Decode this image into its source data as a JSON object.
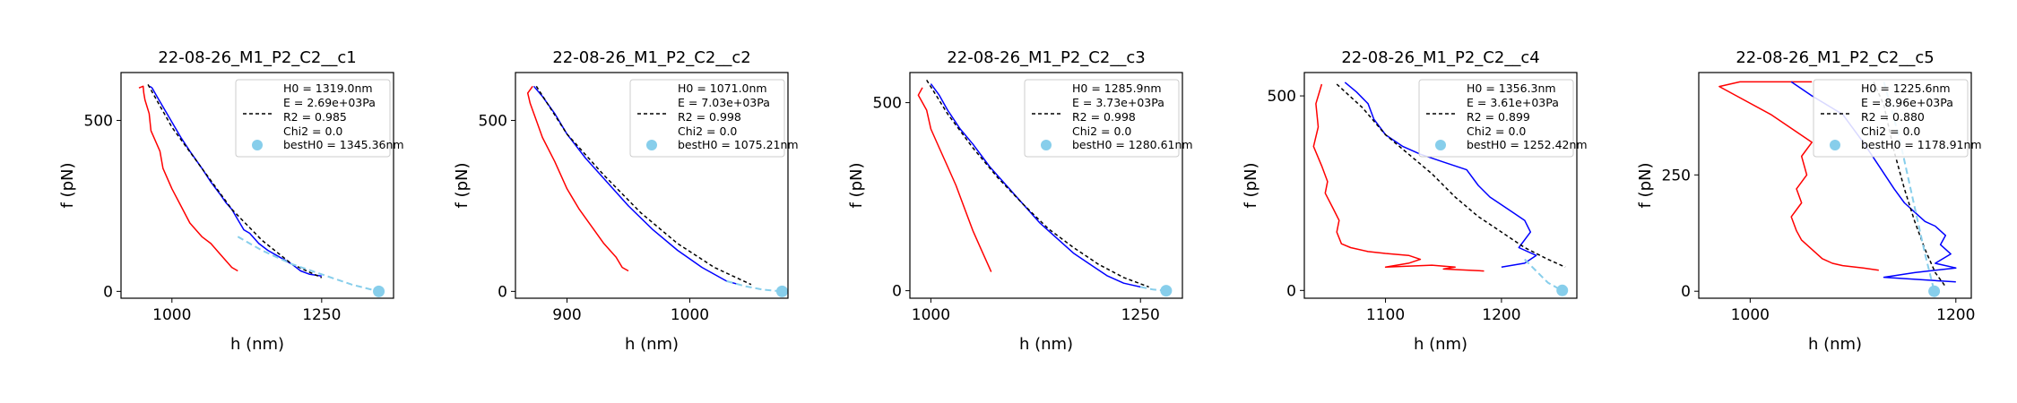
{
  "figure": {
    "background": "#ffffff"
  },
  "chart_data": [
    {
      "type": "line",
      "title": "22-08-26_M1_P2_C2__c1",
      "xlabel": "h (nm)",
      "ylabel": "f (pN)",
      "xlim": [
        915,
        1370
      ],
      "ylim": [
        -20,
        640
      ],
      "xticks": [
        1000,
        1250
      ],
      "yticks": [
        0,
        500
      ],
      "legend": {
        "position": "top-right",
        "entries": [
          "H0 = 1319.0nm",
          "E = 2.69e+03Pa",
          "R2 = 0.985",
          "Chi2 = 0.0",
          "bestH0 = 1345.36nm"
        ]
      },
      "series": [
        {
          "role": "approach",
          "color": "#ff0000",
          "x": [
            945,
            952,
            953,
            955,
            962,
            965,
            980,
            985,
            1000,
            1015,
            1030,
            1050,
            1065,
            1080,
            1090,
            1100,
            1110
          ],
          "y": [
            595,
            600,
            580,
            560,
            520,
            470,
            410,
            360,
            300,
            250,
            200,
            160,
            140,
            110,
            90,
            70,
            60
          ]
        },
        {
          "role": "retract",
          "color": "#0000ff",
          "x": [
            963,
            967,
            975,
            985,
            1000,
            1015,
            1030,
            1050,
            1065,
            1080,
            1090,
            1100,
            1110,
            1120,
            1130,
            1145,
            1160,
            1180,
            1200,
            1215,
            1230,
            1250
          ],
          "y": [
            600,
            595,
            570,
            540,
            495,
            450,
            410,
            360,
            320,
            285,
            260,
            240,
            210,
            180,
            170,
            140,
            120,
            100,
            80,
            60,
            50,
            45
          ]
        },
        {
          "role": "fit",
          "color": "#000000",
          "dashed": true,
          "x": [
            960,
            1000,
            1050,
            1100,
            1150,
            1200,
            1250
          ],
          "y": [
            605,
            480,
            360,
            240,
            150,
            80,
            40
          ]
        },
        {
          "role": "extrapolation",
          "color": "#87ceeb",
          "dashed": true,
          "x": [
            1110,
            1150,
            1200,
            1250,
            1300,
            1345
          ],
          "y": [
            160,
            120,
            80,
            50,
            20,
            0
          ]
        }
      ],
      "bestH0_point": {
        "x": 1345.36,
        "y": 0,
        "color": "#87ceeb"
      }
    },
    {
      "type": "line",
      "title": "22-08-26_M1_P2_C2__c2",
      "xlabel": "h (nm)",
      "ylabel": "f (pN)",
      "xlim": [
        858,
        1080
      ],
      "ylim": [
        -20,
        640
      ],
      "xticks": [
        900,
        1000
      ],
      "yticks": [
        0,
        500
      ],
      "legend": {
        "position": "top-right",
        "entries": [
          "H0 = 1071.0nm",
          "E = 7.03e+03Pa",
          "R2 = 0.998",
          "Chi2 = 0.0",
          "bestH0 = 1075.21nm"
        ]
      },
      "series": [
        {
          "role": "approach",
          "color": "#ff0000",
          "x": [
            872,
            868,
            870,
            875,
            880,
            890,
            900,
            910,
            920,
            930,
            940,
            945,
            950
          ],
          "y": [
            600,
            580,
            550,
            500,
            450,
            380,
            300,
            240,
            190,
            140,
            100,
            70,
            60
          ]
        },
        {
          "role": "retract",
          "color": "#0000ff",
          "x": [
            873,
            880,
            890,
            900,
            915,
            930,
            950,
            970,
            990,
            1010,
            1030,
            1040
          ],
          "y": [
            600,
            570,
            520,
            460,
            390,
            330,
            250,
            180,
            120,
            70,
            30,
            20
          ]
        },
        {
          "role": "fit",
          "color": "#000000",
          "dashed": true,
          "x": [
            875,
            900,
            930,
            960,
            990,
            1020,
            1050
          ],
          "y": [
            600,
            460,
            340,
            230,
            140,
            70,
            20
          ]
        },
        {
          "role": "extrapolation",
          "color": "#87ceeb",
          "dashed": true,
          "x": [
            1030,
            1045,
            1060,
            1075
          ],
          "y": [
            30,
            15,
            5,
            0
          ]
        }
      ],
      "bestH0_point": {
        "x": 1075.21,
        "y": 0,
        "color": "#87ceeb"
      }
    },
    {
      "type": "line",
      "title": "22-08-26_M1_P2_C2__c3",
      "xlabel": "h (nm)",
      "ylabel": "f (pN)",
      "xlim": [
        975,
        1300
      ],
      "ylim": [
        -20,
        580
      ],
      "xticks": [
        1000,
        1250
      ],
      "yticks": [
        0,
        500
      ],
      "legend": {
        "position": "top-right",
        "entries": [
          "H0 = 1285.9nm",
          "E = 3.73e+03Pa",
          "R2 = 0.998",
          "Chi2 = 0.0",
          "bestH0 = 1280.61nm"
        ]
      },
      "series": [
        {
          "role": "approach",
          "color": "#ff0000",
          "x": [
            990,
            985,
            995,
            1000,
            1010,
            1020,
            1030,
            1040,
            1050,
            1060,
            1070,
            1072
          ],
          "y": [
            540,
            520,
            480,
            430,
            380,
            330,
            280,
            220,
            160,
            110,
            60,
            50
          ]
        },
        {
          "role": "retract",
          "color": "#0000ff",
          "x": [
            1000,
            1010,
            1020,
            1035,
            1050,
            1070,
            1090,
            1110,
            1130,
            1150,
            1170,
            1190,
            1210,
            1230,
            1250
          ],
          "y": [
            550,
            520,
            480,
            430,
            390,
            330,
            280,
            230,
            180,
            140,
            100,
            70,
            40,
            20,
            10
          ]
        },
        {
          "role": "fit",
          "color": "#000000",
          "dashed": true,
          "x": [
            995,
            1020,
            1050,
            1080,
            1110,
            1140,
            1170,
            1200,
            1230,
            1260
          ],
          "y": [
            560,
            470,
            380,
            300,
            230,
            165,
            115,
            70,
            35,
            10
          ]
        },
        {
          "role": "extrapolation",
          "color": "#87ceeb",
          "dashed": true,
          "x": [
            1250,
            1265,
            1280
          ],
          "y": [
            10,
            3,
            0
          ]
        }
      ],
      "bestH0_point": {
        "x": 1280.61,
        "y": 0,
        "color": "#87ceeb"
      }
    },
    {
      "type": "line",
      "title": "22-08-26_M1_P2_C2__c4",
      "xlabel": "h (nm)",
      "ylabel": "f (pN)",
      "xlim": [
        1030,
        1265
      ],
      "ylim": [
        -20,
        560
      ],
      "xticks": [
        1100,
        1200
      ],
      "yticks": [
        0,
        500
      ],
      "legend": {
        "position": "top-right",
        "entries": [
          "H0 = 1356.3nm",
          "E = 3.61e+03Pa",
          "R2 = 0.899",
          "Chi2 = 0.0",
          "bestH0 = 1252.42nm"
        ]
      },
      "series": [
        {
          "role": "approach",
          "color": "#ff0000",
          "x": [
            1045,
            1040,
            1042,
            1038,
            1045,
            1050,
            1048,
            1055,
            1060,
            1058,
            1062,
            1070,
            1085,
            1100,
            1120,
            1130,
            1120,
            1100,
            1140,
            1160,
            1150,
            1185
          ],
          "y": [
            530,
            480,
            420,
            370,
            320,
            280,
            250,
            210,
            180,
            150,
            120,
            110,
            100,
            95,
            90,
            80,
            70,
            60,
            65,
            60,
            55,
            50
          ]
        },
        {
          "role": "retract",
          "color": "#0000ff",
          "x": [
            1065,
            1075,
            1085,
            1090,
            1100,
            1115,
            1130,
            1150,
            1170,
            1180,
            1190,
            1210,
            1220,
            1225,
            1215,
            1230,
            1220,
            1200
          ],
          "y": [
            535,
            510,
            480,
            440,
            400,
            370,
            350,
            330,
            310,
            270,
            240,
            200,
            180,
            150,
            110,
            90,
            70,
            60
          ]
        },
        {
          "role": "fit",
          "color": "#000000",
          "dashed": true,
          "x": [
            1058,
            1080,
            1100,
            1120,
            1140,
            1160,
            1180,
            1200,
            1220,
            1240,
            1255
          ],
          "y": [
            530,
            470,
            400,
            350,
            300,
            240,
            190,
            150,
            110,
            80,
            60
          ]
        },
        {
          "role": "extrapolation",
          "color": "#87ceeb",
          "dashed": true,
          "x": [
            1220,
            1230,
            1240,
            1252
          ],
          "y": [
            80,
            50,
            20,
            0
          ]
        }
      ],
      "bestH0_point": {
        "x": 1252.42,
        "y": 0,
        "color": "#87ceeb"
      }
    },
    {
      "type": "line",
      "title": "22-08-26_M1_P2_C2__c5",
      "xlabel": "h (nm)",
      "ylabel": "f (pN)",
      "xlim": [
        950,
        1215
      ],
      "ylim": [
        -15,
        470
      ],
      "xticks": [
        1000,
        1200
      ],
      "yticks": [
        0,
        250
      ],
      "legend": {
        "position": "top-right",
        "entries": [
          "H0 = 1225.6nm",
          "E = 8.96e+03Pa",
          "R2 = 0.880",
          "Chi2 = 0.0",
          "bestH0 = 1178.91nm"
        ]
      },
      "series": [
        {
          "role": "approach",
          "color": "#ff0000",
          "x": [
            1060,
            990,
            970,
            1020,
            1060,
            1050,
            1055,
            1045,
            1050,
            1040,
            1045,
            1050,
            1060,
            1070,
            1080,
            1090,
            1110,
            1125
          ],
          "y": [
            450,
            450,
            440,
            380,
            320,
            290,
            250,
            220,
            190,
            160,
            130,
            110,
            90,
            70,
            60,
            55,
            50,
            45
          ]
        },
        {
          "role": "retract",
          "color": "#0000ff",
          "x": [
            1040,
            1060,
            1090,
            1110,
            1125,
            1140,
            1150,
            1160,
            1170,
            1180,
            1190,
            1185,
            1195,
            1180,
            1200,
            1160,
            1130,
            1200
          ],
          "y": [
            450,
            420,
            380,
            320,
            270,
            220,
            190,
            170,
            150,
            140,
            120,
            100,
            80,
            60,
            50,
            40,
            30,
            20
          ]
        },
        {
          "role": "fit",
          "color": "#000000",
          "dashed": true,
          "x": [
            1120,
            1130,
            1140,
            1150,
            1160,
            1170,
            1180,
            1190
          ],
          "y": [
            450,
            400,
            300,
            220,
            150,
            90,
            40,
            10
          ]
        },
        {
          "role": "extrapolation",
          "color": "#87ceeb",
          "dashed": true,
          "x": [
            1130,
            1145,
            1160,
            1170,
            1179
          ],
          "y": [
            450,
            330,
            180,
            80,
            0
          ]
        }
      ],
      "bestH0_point": {
        "x": 1178.91,
        "y": 0,
        "color": "#87ceeb"
      }
    }
  ]
}
